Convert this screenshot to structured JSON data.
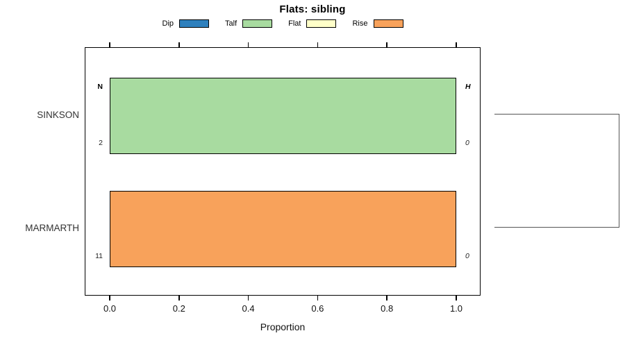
{
  "title": "Flats: sibling",
  "legend": {
    "items": [
      {
        "label": "Dip",
        "color": "#2E80BD"
      },
      {
        "label": "Talf",
        "color": "#A8DBA0"
      },
      {
        "label": "Flat",
        "color": "#FFFFC9"
      },
      {
        "label": "Rise",
        "color": "#F8A25B"
      }
    ]
  },
  "axis": {
    "xlabel": "Proportion",
    "tick_labels": [
      "0.0",
      "0.2",
      "0.4",
      "0.6",
      "0.8",
      "1.0"
    ]
  },
  "chart_data": {
    "type": "bar",
    "orientation": "horizontal",
    "title": "Flats: sibling",
    "xlabel": "Proportion",
    "xlim": [
      0,
      1
    ],
    "xticks": [
      0.0,
      0.2,
      0.4,
      0.6,
      0.8,
      1.0
    ],
    "grid": false,
    "legend_position": "top",
    "categories": [
      "SINKSON",
      "MARMARTH"
    ],
    "series": [
      {
        "name": "Dip",
        "color": "#2E80BD",
        "values": [
          0,
          0
        ]
      },
      {
        "name": "Talf",
        "color": "#A8DBA0",
        "values": [
          1.0,
          0
        ]
      },
      {
        "name": "Flat",
        "color": "#FFFFC9",
        "values": [
          0,
          0
        ]
      },
      {
        "name": "Rise",
        "color": "#F8A25B",
        "values": [
          0,
          1.0
        ]
      }
    ],
    "rows": [
      {
        "category": "SINKSON",
        "fill_series": "Talf",
        "value": 1.0,
        "color": "#A8DBA0",
        "left_top": "N",
        "left_bottom": "2",
        "right_top": "H",
        "right_bottom": "0"
      },
      {
        "category": "MARMARTH",
        "fill_series": "Rise",
        "value": 1.0,
        "color": "#F8A25B",
        "left_top": "",
        "left_bottom": "11",
        "right_top": "",
        "right_bottom": "0"
      }
    ],
    "annotations": {
      "left_header": "N",
      "right_header": "H",
      "dendrogram": {
        "joins": [
          "SINKSON",
          "MARMARTH"
        ]
      }
    }
  }
}
